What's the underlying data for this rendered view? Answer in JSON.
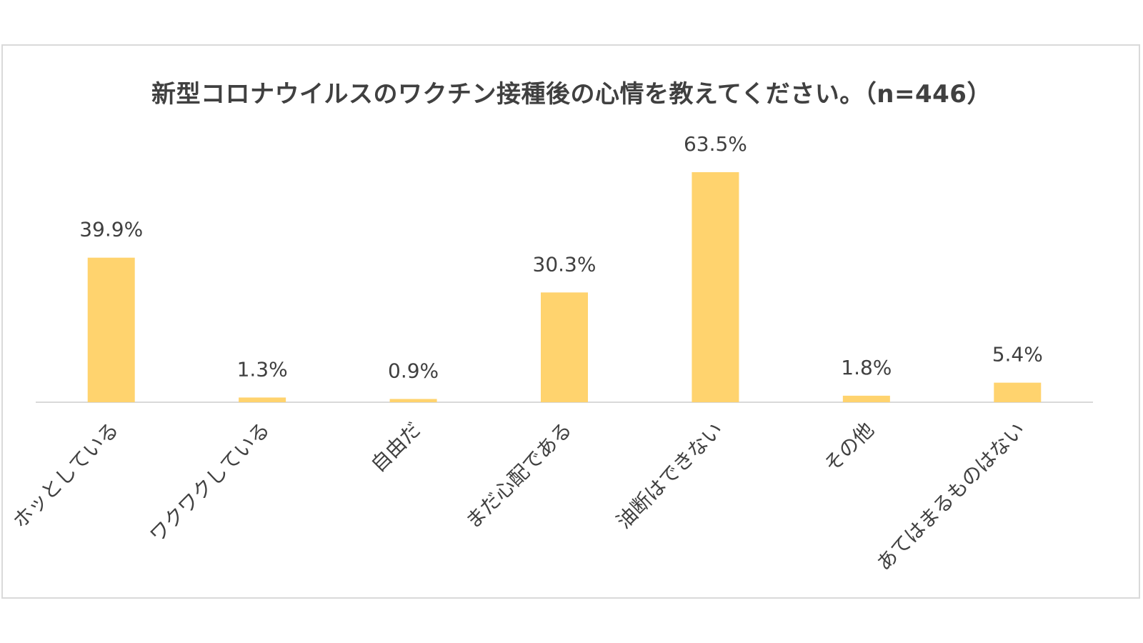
{
  "chart_data": {
    "type": "bar",
    "title": "新型コロナウイルスのワクチン接種後の心情を教えてください。（n=446）",
    "categories": [
      "ホッとしている",
      "ワクワクしている",
      "自由だ",
      "まだ心配である",
      "油断はできない",
      "その他",
      "あてはまるものはない"
    ],
    "values": [
      39.9,
      1.3,
      0.9,
      30.3,
      63.5,
      1.8,
      5.4
    ],
    "data_labels": [
      "39.9%",
      "1.3%",
      "0.9%",
      "30.3%",
      "63.5%",
      "1.8%",
      "5.4%"
    ],
    "ylim": [
      0,
      70
    ],
    "grid": false,
    "legend": "none",
    "colors": {
      "bar": "#FFD36E",
      "axis": "#d9d9d9",
      "text": "#404040"
    }
  }
}
